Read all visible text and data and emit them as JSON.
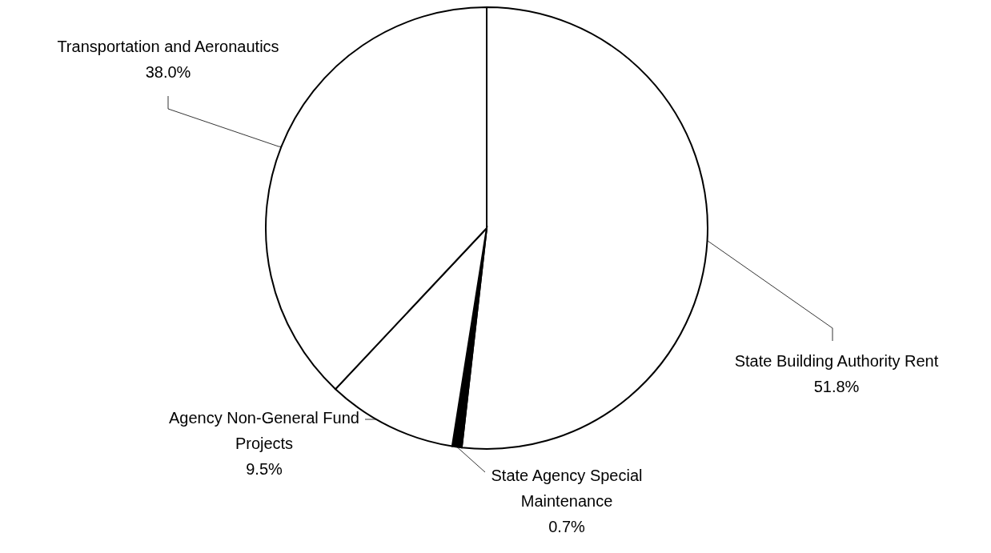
{
  "chart_data": {
    "type": "pie",
    "categories": [
      "State Building Authority Rent",
      "State Agency Special Maintenance",
      "Agency Non-General Fund Projects",
      "Transportation and Aeronautics"
    ],
    "values": [
      51.8,
      0.7,
      9.5,
      38.0
    ],
    "value_labels": [
      "51.8%",
      "0.7%",
      "9.5%",
      "38.0%"
    ],
    "colors": [
      "#ffffff",
      "#000000",
      "#ffffff",
      "#ffffff"
    ],
    "legend": false
  }
}
